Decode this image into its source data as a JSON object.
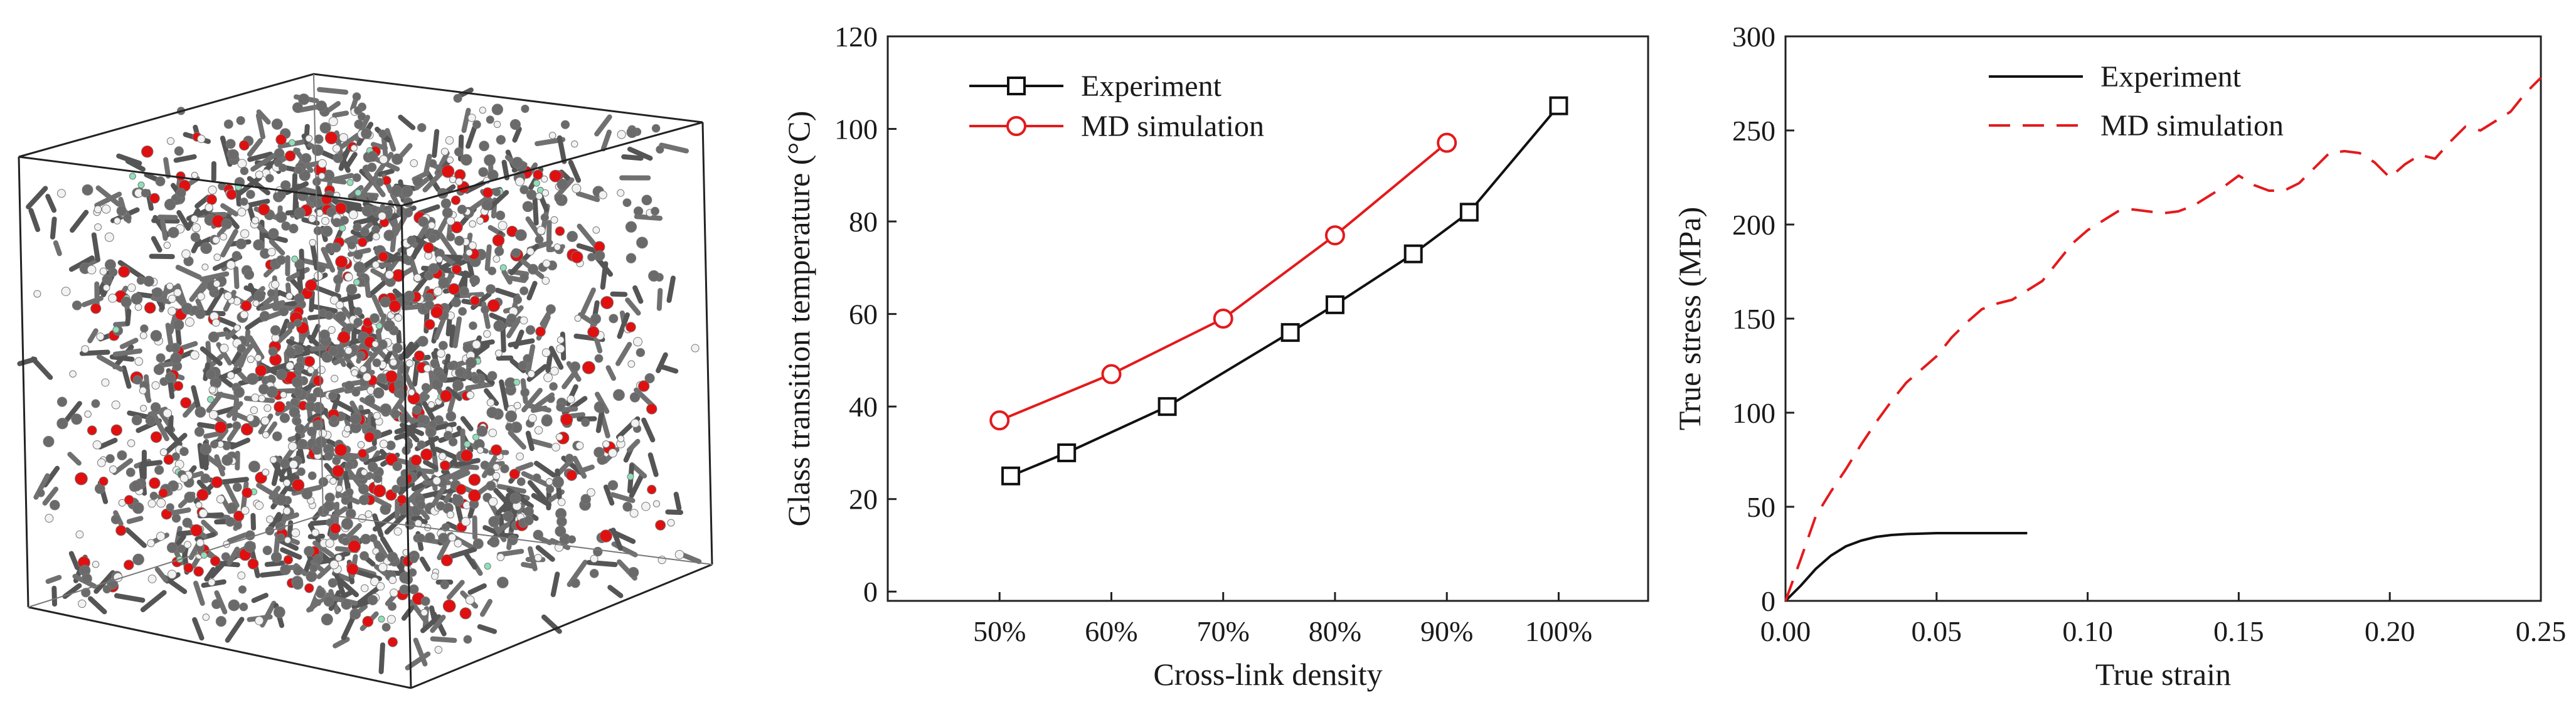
{
  "figure": {
    "molecular_model": {
      "name": "3D molecular dynamics model of cross-linked polymer network"
    }
  },
  "chart_data": [
    {
      "type": "line",
      "xlabel": "Cross-link density",
      "ylabel": "Glass transition temperature (°C)",
      "xlim": [
        40,
        108
      ],
      "ylim": [
        -2,
        120
      ],
      "x_ticks": [
        50,
        60,
        70,
        80,
        90,
        100
      ],
      "x_tick_labels": [
        "50%",
        "60%",
        "70%",
        "80%",
        "90%",
        "100%"
      ],
      "y_ticks": [
        0,
        20,
        40,
        60,
        80,
        100,
        120
      ],
      "y_tick_labels": [
        "0",
        "20",
        "40",
        "60",
        "80",
        "100",
        "120"
      ],
      "legend_position": "top-left",
      "series": [
        {
          "name": "Experiment",
          "color": "#111111",
          "marker": "square",
          "x": [
            51,
            56,
            65,
            76,
            80,
            87,
            92,
            100
          ],
          "y": [
            25,
            30,
            40,
            56,
            62,
            73,
            82,
            105
          ]
        },
        {
          "name": "MD simulation",
          "color": "#e31a1c",
          "marker": "circle",
          "x": [
            50,
            60,
            70,
            80,
            90
          ],
          "y": [
            37,
            47,
            59,
            77,
            97
          ]
        }
      ]
    },
    {
      "type": "line",
      "xlabel": "True strain",
      "ylabel": "True stress (MPa)",
      "xlim": [
        0,
        0.25
      ],
      "ylim": [
        0,
        300
      ],
      "x_ticks": [
        0,
        0.05,
        0.1,
        0.15,
        0.2,
        0.25
      ],
      "x_tick_labels": [
        "0.00",
        "0.05",
        "0.10",
        "0.15",
        "0.20",
        "0.25"
      ],
      "y_ticks": [
        0,
        50,
        100,
        150,
        200,
        250,
        300
      ],
      "y_tick_labels": [
        "0",
        "50",
        "100",
        "150",
        "200",
        "250",
        "300"
      ],
      "legend_position": "top-center",
      "series": [
        {
          "name": "Experiment",
          "color": "#111111",
          "style": "solid",
          "x": [
            0,
            0.005,
            0.01,
            0.015,
            0.02,
            0.025,
            0.03,
            0.035,
            0.04,
            0.05,
            0.06,
            0.07,
            0.08
          ],
          "y": [
            0,
            8,
            17,
            24,
            29,
            32,
            34,
            35,
            35.5,
            36,
            36,
            36,
            36
          ]
        },
        {
          "name": "MD simulation",
          "color": "#e31a1c",
          "style": "dashed",
          "x": [
            0,
            0.005,
            0.01,
            0.015,
            0.02,
            0.025,
            0.03,
            0.035,
            0.04,
            0.045,
            0.05,
            0.055,
            0.06,
            0.065,
            0.07,
            0.075,
            0.08,
            0.085,
            0.09,
            0.095,
            0.1,
            0.105,
            0.11,
            0.115,
            0.12,
            0.125,
            0.13,
            0.135,
            0.14,
            0.145,
            0.15,
            0.155,
            0.16,
            0.165,
            0.17,
            0.175,
            0.18,
            0.185,
            0.19,
            0.195,
            0.2,
            0.205,
            0.21,
            0.215,
            0.22,
            0.225,
            0.23,
            0.235,
            0.24,
            0.245,
            0.25
          ],
          "y": [
            0,
            22,
            45,
            58,
            70,
            83,
            95,
            106,
            116,
            123,
            130,
            140,
            148,
            155,
            158,
            160,
            165,
            170,
            180,
            190,
            197,
            202,
            207,
            208,
            207,
            206,
            207,
            210,
            215,
            220,
            226,
            221,
            218,
            218,
            222,
            230,
            238,
            239,
            238,
            233,
            225,
            232,
            237,
            235,
            244,
            252,
            250,
            255,
            260,
            270,
            278
          ]
        }
      ]
    }
  ]
}
